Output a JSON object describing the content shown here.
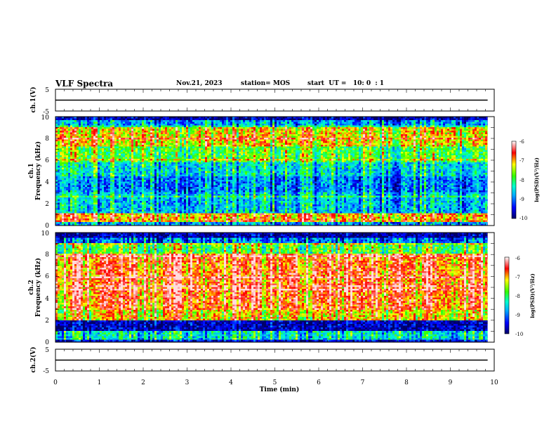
{
  "header": {
    "title": "VLF Spectra",
    "date": "Nov.21, 2023",
    "station": "station= MOS",
    "start": "start  UT =   10: 0  : 1"
  },
  "chart_data": [
    {
      "type": "line",
      "panel": "waveform-ch1",
      "ylabel": "ch.1(V)",
      "ylim": [
        -5,
        5
      ],
      "yticks": [
        "5",
        "-5"
      ],
      "series": [
        {
          "x": [
            0,
            9.85
          ],
          "y": [
            0,
            0
          ]
        }
      ]
    },
    {
      "type": "heatmap",
      "panel": "spectrogram-ch1",
      "ylabel_lines": [
        "ch.1",
        "Frequency (kHz)"
      ],
      "ylim": [
        0,
        10
      ],
      "yticks": [
        "0",
        "2",
        "4",
        "6",
        "8",
        "10"
      ],
      "xlim": [
        0,
        10
      ],
      "data_extent_min": 9.85,
      "bands": [
        {
          "f0": 0.0,
          "f1": 0.3,
          "level": 0.25
        },
        {
          "f0": 0.3,
          "f1": 1.2,
          "level": 0.72
        },
        {
          "f0": 1.2,
          "f1": 2.0,
          "level": 0.3
        },
        {
          "f0": 2.0,
          "f1": 3.0,
          "level": 0.3
        },
        {
          "f0": 3.0,
          "f1": 4.5,
          "level": 0.22
        },
        {
          "f0": 4.5,
          "f1": 5.8,
          "level": 0.34
        },
        {
          "f0": 5.8,
          "f1": 7.3,
          "level": 0.5
        },
        {
          "f0": 7.3,
          "f1": 9.0,
          "level": 0.66
        },
        {
          "f0": 9.0,
          "f1": 9.6,
          "level": 0.25
        },
        {
          "f0": 9.6,
          "f1": 10.0,
          "level": 0.05
        }
      ],
      "colorbar": {
        "label": "log(PSD)(V²/Hz)",
        "ticks": [
          "-6",
          "-7",
          "-8",
          "-9",
          "-10"
        ],
        "range": [
          -10,
          -6
        ]
      }
    },
    {
      "type": "heatmap",
      "panel": "spectrogram-ch2",
      "ylabel_lines": [
        "ch.2",
        "Frequency (kHz)"
      ],
      "ylim": [
        0,
        10
      ],
      "yticks": [
        "0",
        "2",
        "4",
        "6",
        "8",
        "10"
      ],
      "xlim": [
        0,
        10
      ],
      "data_extent_min": 9.85,
      "bands": [
        {
          "f0": 0.0,
          "f1": 0.3,
          "level": 0.1
        },
        {
          "f0": 0.3,
          "f1": 1.0,
          "level": 0.35
        },
        {
          "f0": 1.0,
          "f1": 2.0,
          "level": 0.06
        },
        {
          "f0": 2.0,
          "f1": 3.0,
          "level": 0.66
        },
        {
          "f0": 3.0,
          "f1": 8.0,
          "level": 0.78
        },
        {
          "f0": 8.0,
          "f1": 9.0,
          "level": 0.5
        },
        {
          "f0": 9.0,
          "f1": 9.5,
          "level": 0.2
        },
        {
          "f0": 9.5,
          "f1": 10.0,
          "level": 0.04
        }
      ],
      "colorbar": {
        "label": "log(PSD)(V²/Hz)",
        "ticks": [
          "-6",
          "-7",
          "-8",
          "-9",
          "-10"
        ],
        "range": [
          -10,
          -6
        ]
      }
    },
    {
      "type": "line",
      "panel": "waveform-ch2",
      "ylabel": "ch.2(V)",
      "ylim": [
        -5,
        5
      ],
      "yticks": [
        "5",
        "-5"
      ],
      "xlabel": "Time  (min)",
      "xticks": [
        "0",
        "1",
        "2",
        "3",
        "4",
        "5",
        "6",
        "7",
        "8",
        "9",
        "10"
      ],
      "series": [
        {
          "x": [
            0,
            9.85
          ],
          "y": [
            0,
            0
          ]
        }
      ]
    }
  ]
}
